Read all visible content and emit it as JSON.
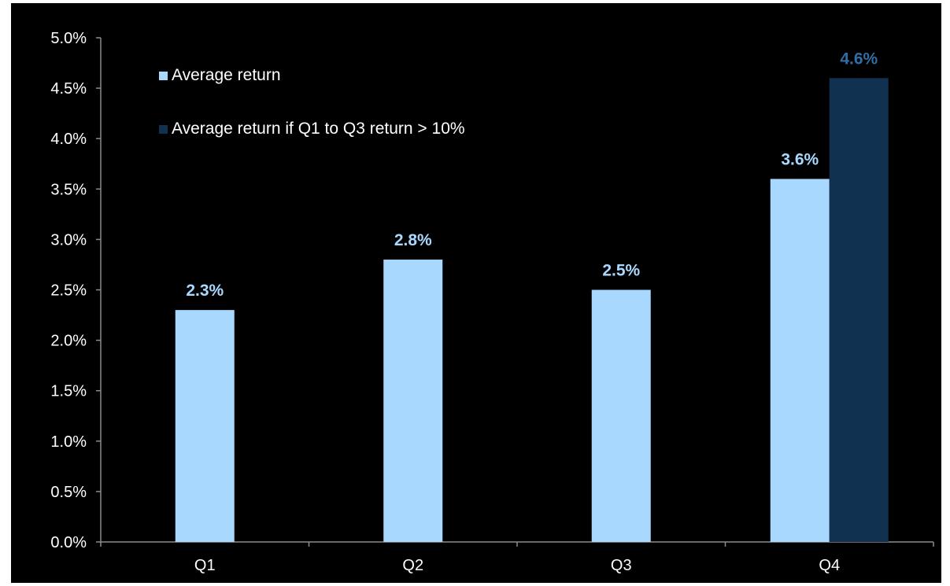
{
  "chart_data": {
    "type": "bar",
    "categories": [
      "Q1",
      "Q2",
      "Q3",
      "Q4"
    ],
    "series": [
      {
        "name": "Average return",
        "values": [
          2.3,
          2.8,
          2.5,
          3.6
        ],
        "labels": [
          "2.3%",
          "2.8%",
          "2.5%",
          "3.6%"
        ],
        "color": "#a9d8ff"
      },
      {
        "name": "Average return if Q1 to Q3 return > 10%",
        "values": [
          null,
          null,
          null,
          4.6
        ],
        "labels": [
          null,
          null,
          null,
          "4.6%"
        ],
        "color": "#10314f"
      }
    ],
    "y_ticks": [
      "0.0%",
      "0.5%",
      "1.0%",
      "1.5%",
      "2.0%",
      "2.5%",
      "3.0%",
      "3.5%",
      "4.0%",
      "4.5%",
      "5.0%"
    ],
    "ylim": [
      0,
      5
    ],
    "y_unit": "%",
    "legend_position": "top-left",
    "grid": false,
    "colors": {
      "background": "#000000",
      "axis": "#8c8c8c",
      "tick_text": "#ffffff",
      "label_light": "#a9d8ff",
      "label_dark": "#2f6fa8"
    }
  }
}
